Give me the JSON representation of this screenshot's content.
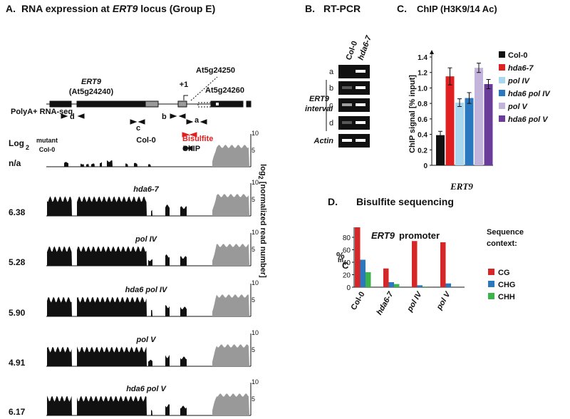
{
  "panel_a": {
    "label": "A.",
    "title": [
      "RNA expression at ",
      "ERT9",
      " locus  (Group E)"
    ],
    "gene": {
      "name": "ERT9",
      "id": "(At5g24240)",
      "tss": "+1",
      "neighbor1": "At5g24250",
      "neighbor2": "At5g24260"
    },
    "primers": [
      "d",
      "c",
      "b",
      "a"
    ],
    "bisulfite": "Bisulfite",
    "chip": "ChIP",
    "rnaseq": "PolyA+ RNA-seq",
    "ratio": {
      "log": "Log",
      "sub": "2",
      "num": "mutant",
      "den": "Col-0"
    },
    "tracks": [
      {
        "name": "Col-0",
        "value": "n/a"
      },
      {
        "name": "hda6-7",
        "value": "6.38"
      },
      {
        "name": "pol IV",
        "value": "5.28"
      },
      {
        "name": "hda6 pol IV",
        "value": "5.90"
      },
      {
        "name": "pol V",
        "value": "4.91"
      },
      {
        "name": "hda6 pol V",
        "value": "6.17"
      }
    ],
    "track_ticks": [
      "10",
      "5"
    ],
    "axis_label": [
      "log",
      "2",
      " [normalized read number]"
    ]
  },
  "panel_b": {
    "label": "B.",
    "title": "RT-PCR",
    "columns": [
      "Col-0",
      "hda6-7"
    ],
    "rows": [
      "a",
      "b",
      "c",
      "d",
      "Actin"
    ],
    "group": [
      "ERT9",
      "interval"
    ]
  },
  "chart_data": [
    {
      "type": "bar",
      "panel": "C.",
      "title": "ChIP (H3K9/14 Ac)",
      "ylabel": "ChIP signal [% input]",
      "categories": [
        "ERT9"
      ],
      "series": [
        {
          "name": "Col-0",
          "color": "#111111",
          "values": [
            0.39
          ],
          "errors": [
            0.05
          ]
        },
        {
          "name": "hda6-7",
          "color": "#e02020",
          "values": [
            1.15
          ],
          "errors": [
            0.11
          ]
        },
        {
          "name": "pol IV",
          "color": "#a9d7ef",
          "values": [
            0.81
          ],
          "errors": [
            0.05
          ]
        },
        {
          "name": "hda6 pol IV",
          "color": "#2a78c0",
          "values": [
            0.87
          ],
          "errors": [
            0.07
          ]
        },
        {
          "name": "pol V",
          "color": "#c3b4dc",
          "values": [
            1.26
          ],
          "errors": [
            0.06
          ]
        },
        {
          "name": "hda6 pol V",
          "color": "#6a3d9a",
          "values": [
            1.05
          ],
          "errors": [
            0.06
          ]
        }
      ],
      "ylim": [
        0,
        1.4
      ],
      "yticks": [
        0,
        0.2,
        0.4,
        0.6,
        0.8,
        {
          "value": 1,
          "label": "1.0"
        },
        1.2,
        1.4
      ]
    },
    {
      "type": "bar",
      "panel": "D.",
      "title": "Bisulfite sequencing",
      "annotation": [
        "ERT9",
        " promoter"
      ],
      "ylabel": [
        "%",
        "m",
        "C"
      ],
      "legend_title": [
        "Sequence",
        "context:"
      ],
      "categories": [
        "Col-0",
        "hda6-7",
        "pol IV",
        "pol V"
      ],
      "series": [
        {
          "name": "CG",
          "color": "#d62728",
          "values": [
            96,
            30,
            74,
            72
          ]
        },
        {
          "name": "CHG",
          "color": "#2a78c0",
          "values": [
            44,
            8,
            3,
            6
          ]
        },
        {
          "name": "CHH",
          "color": "#3cb44b",
          "values": [
            24,
            5,
            1,
            0
          ]
        }
      ],
      "ylim": [
        0,
        96
      ],
      "yticks": [
        0,
        20,
        40,
        60,
        80
      ]
    }
  ]
}
